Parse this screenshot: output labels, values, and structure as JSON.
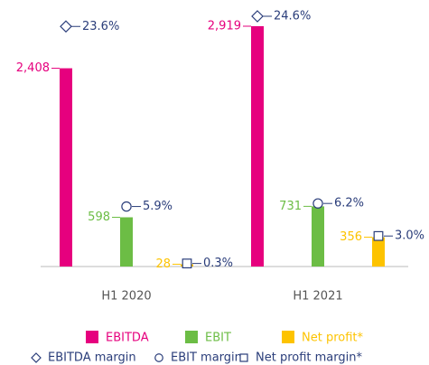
{
  "chart_data": {
    "type": "bar",
    "categories": [
      "H1 2020",
      "H1 2021"
    ],
    "series": [
      {
        "name": "EBITDA",
        "color": "#e6007e",
        "values": [
          2408,
          2919
        ],
        "value_labels": [
          "2,408",
          "2,919"
        ]
      },
      {
        "name": "EBIT",
        "color": "#6cbd45",
        "values": [
          598,
          731
        ]
      },
      {
        "name": "Net profit*",
        "color": "#fdc300",
        "values": [
          28,
          356
        ]
      }
    ],
    "margin_color": "#2a3d7a",
    "margin_series": [
      {
        "name": "EBITDA margin",
        "marker": "diamond",
        "values": [
          23.6,
          24.6
        ],
        "value_labels": [
          "23.6%",
          "24.6%"
        ]
      },
      {
        "name": "EBIT margin",
        "marker": "circle",
        "values": [
          5.9,
          6.2
        ],
        "value_labels": [
          "5.9%",
          "6.2%"
        ]
      },
      {
        "name": "Net profit margin*",
        "marker": "square",
        "values": [
          0.3,
          3.0
        ],
        "value_labels": [
          "0.3%",
          "3.0%"
        ]
      }
    ]
  }
}
